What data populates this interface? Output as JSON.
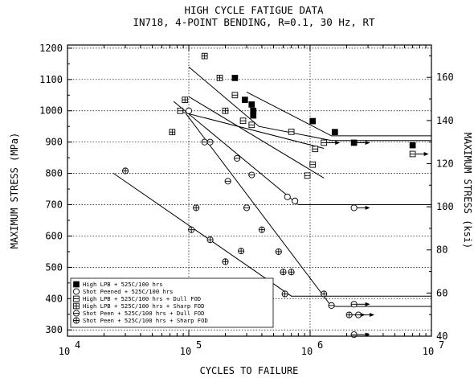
{
  "chart_data": {
    "type": "scatter",
    "title": "HIGH CYCLE FATIGUE DATA",
    "subtitle": "IN718, 4-POINT BENDING, R=0.1, 30 Hz, RT",
    "xlabel": "CYCLES TO FAILURE",
    "ylabel": "MAXIMUM STRESS (MPa)",
    "ylabel_right": "MAXIMUM STRESS (ksi)",
    "x_scale": "log",
    "xlim": [
      10000,
      10000000
    ],
    "ylim": [
      280,
      1210
    ],
    "ylim_right_ksi": [
      40,
      175
    ],
    "x_ticks": [
      10000,
      100000,
      1000000,
      10000000
    ],
    "x_tick_labels": [
      {
        "base": "10",
        "exp": "4"
      },
      {
        "base": "10",
        "exp": "5"
      },
      {
        "base": "10",
        "exp": "6"
      },
      {
        "base": "10",
        "exp": "7"
      }
    ],
    "y_ticks": [
      300,
      400,
      500,
      600,
      700,
      800,
      900,
      1000,
      1100,
      1200
    ],
    "y_tick_labels": [
      "300",
      "400",
      "500",
      "600",
      "700",
      "800",
      "900",
      "1000",
      "1100",
      "1200"
    ],
    "y_right_ticks": [
      40,
      60,
      80,
      100,
      120,
      140,
      160
    ],
    "y_right_tick_labels": [
      "40",
      "60",
      "80",
      "100",
      "120",
      "140",
      "160"
    ],
    "grid": "dotted at decades and 100 MPa",
    "legend_position": "bottom-left",
    "series": [
      {
        "name": "High LPB + 525C/100 hrs",
        "marker": "filled-square",
        "points": [
          [
            240000,
            1105
          ],
          [
            290000,
            1035
          ],
          [
            330000,
            1020
          ],
          [
            340000,
            1000
          ],
          [
            340000,
            985
          ],
          [
            1050000,
            967
          ],
          [
            1600000,
            932
          ],
          [
            2300000,
            898
          ],
          [
            7000000,
            890
          ]
        ],
        "runouts": [
          [
            2300000,
            898
          ]
        ]
      },
      {
        "name": "Shot Peened + 525C/100 hrs",
        "marker": "open-circle",
        "points": [
          [
            100000,
            1000
          ],
          [
            650000,
            725
          ],
          [
            750000,
            712
          ],
          [
            2300000,
            690
          ]
        ],
        "runouts": [
          [
            2300000,
            690
          ]
        ]
      },
      {
        "name": "High LPB + 525C/100 hrs + Dull FOD",
        "marker": "square-h-line",
        "points": [
          [
            85000,
            1000
          ],
          [
            240000,
            1050
          ],
          [
            280000,
            968
          ],
          [
            330000,
            955
          ],
          [
            700000,
            933
          ],
          [
            950000,
            793
          ],
          [
            1050000,
            828
          ],
          [
            1100000,
            878
          ],
          [
            1300000,
            898
          ],
          [
            7000000,
            862
          ]
        ],
        "runouts": [
          [
            1300000,
            898
          ],
          [
            7000000,
            862
          ]
        ]
      },
      {
        "name": "High LPB + 525C/100 hrs + Sharp FOD",
        "marker": "square-grid",
        "points": [
          [
            73000,
            932
          ],
          [
            93000,
            1035
          ],
          [
            135000,
            1175
          ],
          [
            180000,
            1105
          ],
          [
            200000,
            1000
          ]
        ],
        "runouts": []
      },
      {
        "name": "Shot Peen + 525C/100 hrs + Dull FOD",
        "marker": "circle-h-line",
        "points": [
          [
            135000,
            900
          ],
          [
            150000,
            900
          ],
          [
            210000,
            775
          ],
          [
            250000,
            848
          ],
          [
            300000,
            690
          ],
          [
            330000,
            795
          ],
          [
            1500000,
            378
          ],
          [
            2300000,
            382
          ],
          [
            2500000,
            348
          ],
          [
            2300000,
            285
          ]
        ],
        "runouts": [
          [
            2300000,
            382
          ],
          [
            2500000,
            348
          ],
          [
            2300000,
            285
          ]
        ]
      },
      {
        "name": "Shot Peen + 525C/100 hrs + Sharp FOD",
        "marker": "circle-cross",
        "points": [
          [
            30000,
            808
          ],
          [
            105000,
            620
          ],
          [
            115000,
            690
          ],
          [
            150000,
            588
          ],
          [
            200000,
            518
          ],
          [
            270000,
            552
          ],
          [
            400000,
            620
          ],
          [
            550000,
            550
          ],
          [
            600000,
            485
          ],
          [
            620000,
            415
          ],
          [
            700000,
            485
          ],
          [
            1300000,
            415
          ],
          [
            2100000,
            348
          ]
        ],
        "runouts": [
          [
            2100000,
            348
          ]
        ]
      }
    ],
    "fit_lines": [
      {
        "points": [
          [
            100000,
            1140
          ],
          [
            380000,
            950
          ],
          [
            1500000,
            905
          ],
          [
            10000000,
            905
          ]
        ]
      },
      {
        "points": [
          [
            300000,
            1060
          ],
          [
            1500000,
            920
          ],
          [
            10000000,
            920
          ]
        ]
      },
      {
        "points": [
          [
            90000,
            995
          ],
          [
            1300000,
            880
          ]
        ]
      },
      {
        "points": [
          [
            100000,
            1045
          ],
          [
            1300000,
            785
          ]
        ]
      },
      {
        "points": [
          [
            75000,
            1030
          ],
          [
            800000,
            700
          ],
          [
            10000000,
            700
          ]
        ]
      },
      {
        "points": [
          [
            95000,
            990
          ],
          [
            1500000,
            375
          ],
          [
            10000000,
            375
          ]
        ]
      },
      {
        "points": [
          [
            24000,
            800
          ],
          [
            700000,
            408
          ],
          [
            10000000,
            408
          ]
        ]
      }
    ]
  }
}
